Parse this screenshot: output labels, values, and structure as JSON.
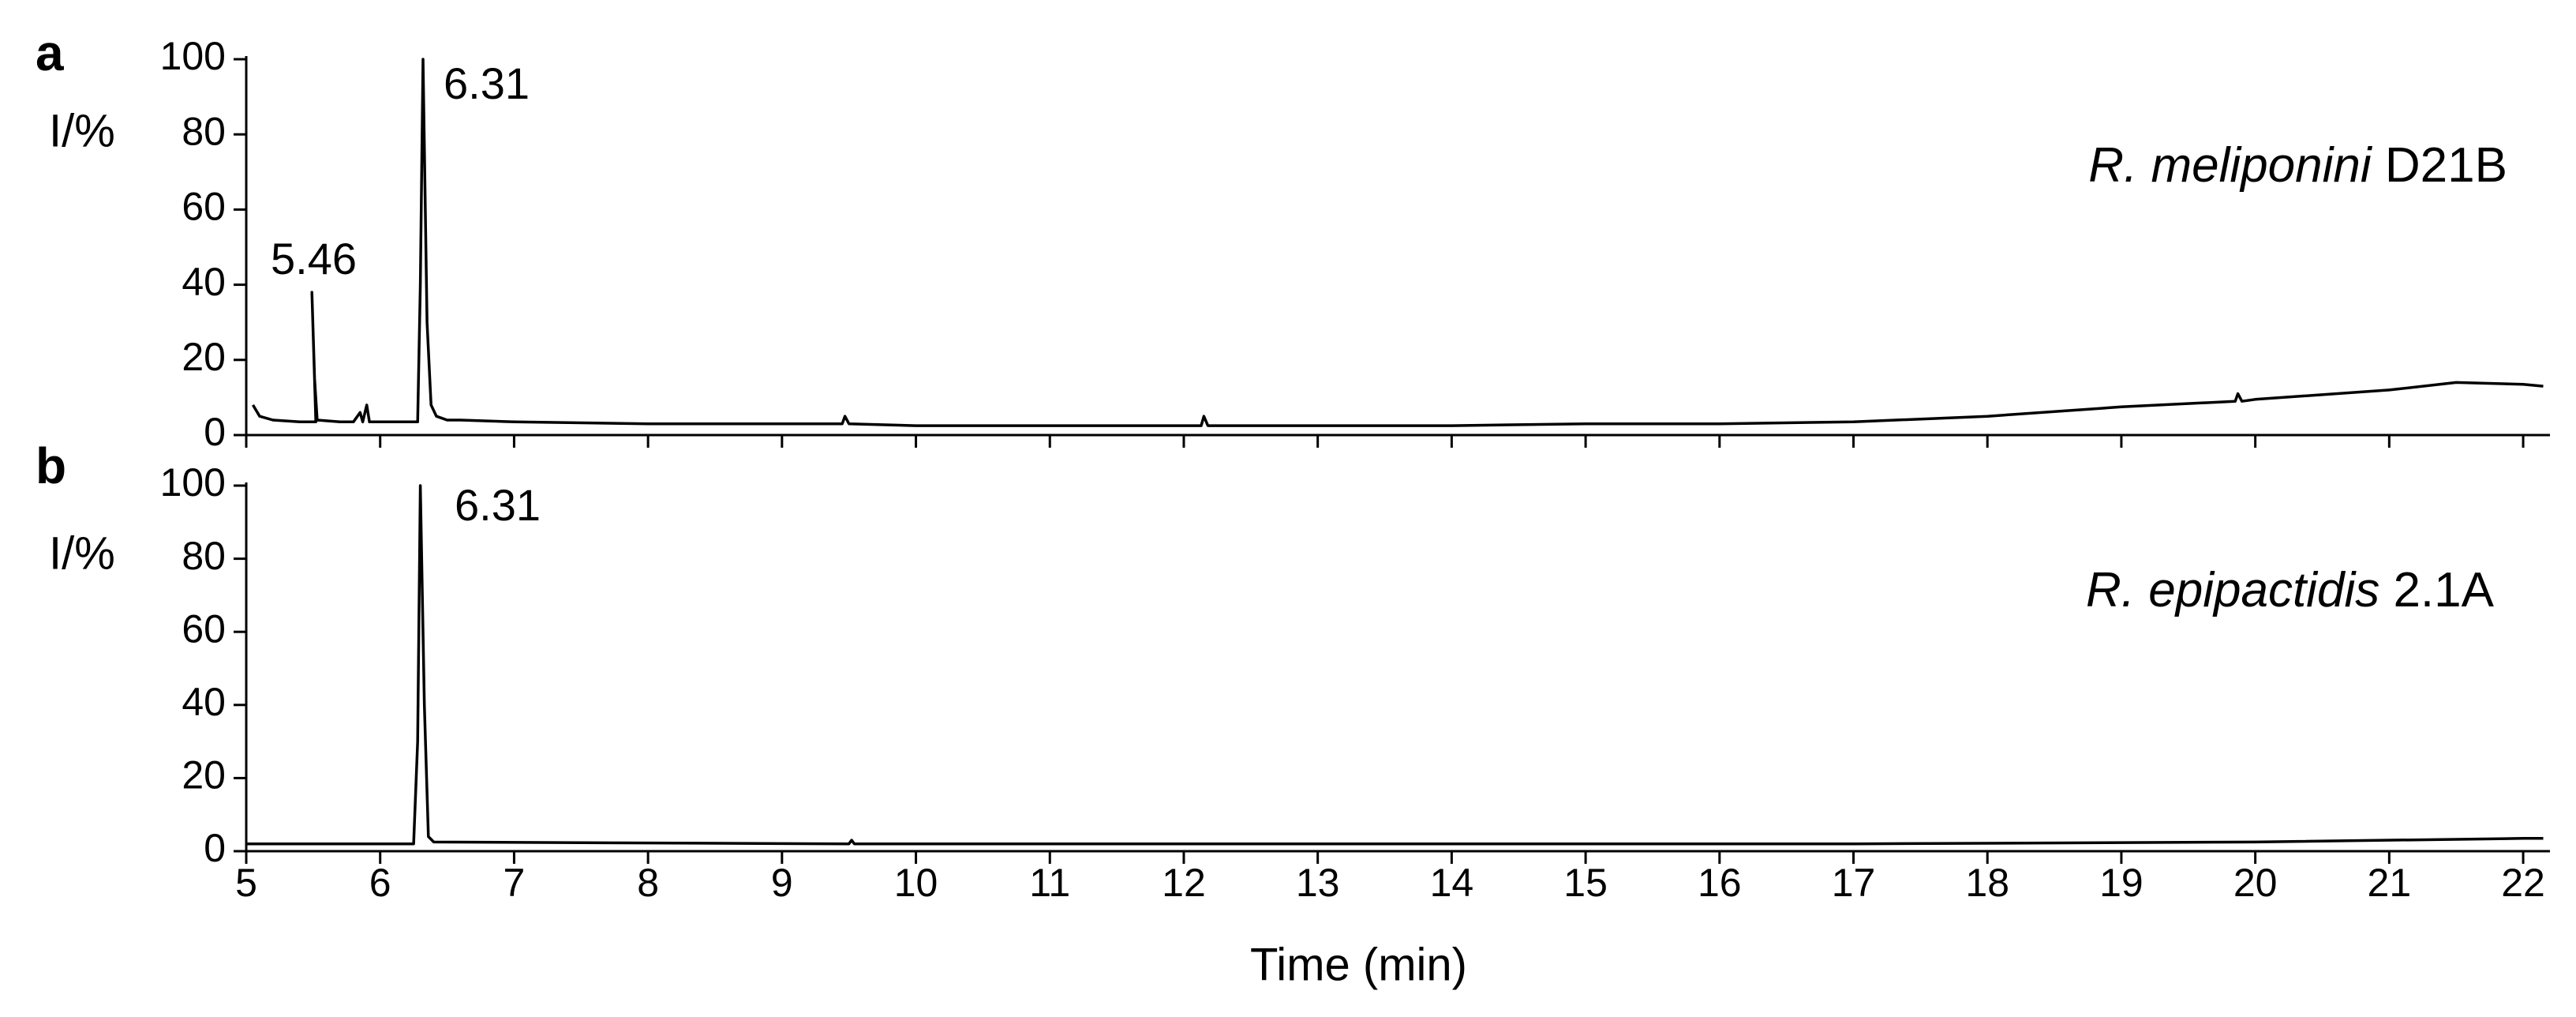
{
  "chart_data": [
    {
      "type": "line",
      "panel": "a",
      "ylabel": "I/%",
      "sample_italic": "R. meliponini",
      "sample_strain": "D21B",
      "xlim": [
        5,
        22.2
      ],
      "ylim": [
        0,
        100
      ],
      "xticks": [
        5,
        6,
        7,
        8,
        9,
        10,
        11,
        12,
        13,
        14,
        15,
        16,
        17,
        18,
        19,
        20,
        21,
        22
      ],
      "yticks": [
        0,
        20,
        40,
        60,
        80,
        100
      ],
      "annotations": [
        "6.31",
        "5.46"
      ],
      "series": [
        {
          "color": "#000000",
          "x": [
            5.05,
            5.1,
            5.2,
            5.4,
            5.5,
            5.52,
            5.49,
            5.51,
            5.53,
            5.7,
            5.8,
            5.85,
            5.87,
            5.9,
            5.92,
            6.0,
            6.28,
            6.3,
            6.32,
            6.35,
            6.38,
            6.42,
            6.5,
            6.6,
            7,
            8,
            9,
            9.45,
            9.47,
            9.5,
            10,
            11,
            12,
            12.13,
            12.15,
            12.18,
            13,
            14,
            15,
            16,
            17,
            18,
            19,
            19.85,
            19.87,
            19.9,
            20,
            21,
            21.5,
            22,
            22.15
          ],
          "values": [
            8,
            5,
            4,
            3.5,
            3.5,
            3.5,
            38,
            15,
            4,
            3.5,
            3.5,
            6,
            3.5,
            8,
            3.5,
            3.5,
            3.5,
            40,
            100,
            30,
            8,
            5,
            4,
            4,
            3.5,
            3,
            3,
            3,
            5,
            3,
            2.5,
            2.5,
            2.5,
            2.5,
            5,
            2.5,
            2.5,
            2.5,
            3,
            3,
            3.5,
            5,
            7.5,
            9,
            11,
            9,
            9.5,
            12,
            14,
            13.5,
            13
          ]
        }
      ]
    },
    {
      "type": "line",
      "panel": "b",
      "ylabel": "I/%",
      "sample_italic": "R. epipactidis",
      "sample_strain": "2.1A",
      "xlabel": "Time (min)",
      "xlim": [
        5,
        22.2
      ],
      "ylim": [
        0,
        100
      ],
      "xticks": [
        5,
        6,
        7,
        8,
        9,
        10,
        11,
        12,
        13,
        14,
        15,
        16,
        17,
        18,
        19,
        20,
        21,
        22
      ],
      "yticks": [
        0,
        20,
        40,
        60,
        80,
        100
      ],
      "annotations": [
        "6.31"
      ],
      "series": [
        {
          "color": "#000000",
          "x": [
            5,
            6.25,
            6.28,
            6.3,
            6.33,
            6.36,
            6.4,
            9.5,
            9.52,
            9.54,
            17,
            20,
            22,
            22.15
          ],
          "values": [
            2,
            2,
            30,
            100,
            40,
            4,
            2.5,
            2,
            3,
            2,
            2,
            2.5,
            3.5,
            3.5
          ]
        }
      ]
    }
  ]
}
